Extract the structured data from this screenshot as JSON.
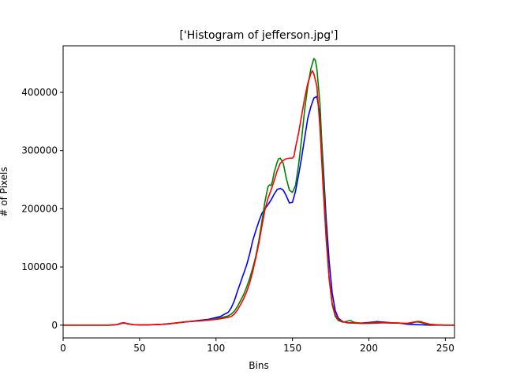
{
  "chart_data": {
    "type": "line",
    "title": "['Histogram of jefferson.jpg']",
    "xlabel": "Bins",
    "ylabel": "# of Pixels",
    "xlim": [
      0,
      256
    ],
    "ylim": [
      -22000,
      480000
    ],
    "xticks": [
      0,
      50,
      100,
      150,
      200,
      250
    ],
    "yticks": [
      0,
      100000,
      200000,
      300000,
      400000
    ],
    "grid": false,
    "series": [
      {
        "color": "#0000ff",
        "points": [
          [
            0,
            0
          ],
          [
            10,
            0
          ],
          [
            20,
            0
          ],
          [
            30,
            0
          ],
          [
            35,
            800
          ],
          [
            38,
            3500
          ],
          [
            40,
            4000
          ],
          [
            43,
            2000
          ],
          [
            46,
            800
          ],
          [
            50,
            500
          ],
          [
            55,
            500
          ],
          [
            60,
            1000
          ],
          [
            65,
            1500
          ],
          [
            70,
            2500
          ],
          [
            75,
            4000
          ],
          [
            80,
            5500
          ],
          [
            85,
            7000
          ],
          [
            90,
            8500
          ],
          [
            95,
            10000
          ],
          [
            100,
            13000
          ],
          [
            103,
            15000
          ],
          [
            105,
            18000
          ],
          [
            108,
            22000
          ],
          [
            110,
            30000
          ],
          [
            112,
            42000
          ],
          [
            114,
            58000
          ],
          [
            116,
            73000
          ],
          [
            118,
            88000
          ],
          [
            120,
            103000
          ],
          [
            122,
            122000
          ],
          [
            124,
            145000
          ],
          [
            126,
            162000
          ],
          [
            128,
            178000
          ],
          [
            130,
            192000
          ],
          [
            132,
            200000
          ],
          [
            134,
            207000
          ],
          [
            136,
            215000
          ],
          [
            138,
            225000
          ],
          [
            140,
            233000
          ],
          [
            142,
            235000
          ],
          [
            144,
            232000
          ],
          [
            146,
            222000
          ],
          [
            148,
            210000
          ],
          [
            150,
            211000
          ],
          [
            152,
            230000
          ],
          [
            154,
            258000
          ],
          [
            156,
            288000
          ],
          [
            158,
            322000
          ],
          [
            160,
            355000
          ],
          [
            162,
            375000
          ],
          [
            164,
            390000
          ],
          [
            166,
            393000
          ],
          [
            168,
            360000
          ],
          [
            170,
            280000
          ],
          [
            172,
            185000
          ],
          [
            174,
            110000
          ],
          [
            176,
            55000
          ],
          [
            178,
            25000
          ],
          [
            180,
            12000
          ],
          [
            183,
            6000
          ],
          [
            186,
            4000
          ],
          [
            190,
            4000
          ],
          [
            195,
            3500
          ],
          [
            200,
            4500
          ],
          [
            205,
            6000
          ],
          [
            210,
            5000
          ],
          [
            215,
            4000
          ],
          [
            220,
            3500
          ],
          [
            225,
            1500
          ],
          [
            230,
            1000
          ],
          [
            235,
            500
          ],
          [
            240,
            0
          ],
          [
            250,
            0
          ],
          [
            256,
            0
          ]
        ]
      },
      {
        "color": "#008000",
        "points": [
          [
            0,
            0
          ],
          [
            10,
            0
          ],
          [
            20,
            0
          ],
          [
            30,
            0
          ],
          [
            35,
            800
          ],
          [
            38,
            3000
          ],
          [
            40,
            3500
          ],
          [
            43,
            2000
          ],
          [
            46,
            800
          ],
          [
            50,
            400
          ],
          [
            55,
            400
          ],
          [
            60,
            800
          ],
          [
            65,
            1500
          ],
          [
            70,
            2500
          ],
          [
            75,
            4000
          ],
          [
            80,
            5500
          ],
          [
            85,
            6500
          ],
          [
            90,
            7500
          ],
          [
            95,
            9000
          ],
          [
            100,
            11000
          ],
          [
            103,
            12500
          ],
          [
            105,
            14000
          ],
          [
            108,
            16000
          ],
          [
            110,
            19000
          ],
          [
            112,
            24000
          ],
          [
            114,
            32000
          ],
          [
            116,
            42000
          ],
          [
            118,
            52000
          ],
          [
            120,
            65000
          ],
          [
            122,
            80000
          ],
          [
            124,
            98000
          ],
          [
            126,
            118000
          ],
          [
            128,
            145000
          ],
          [
            130,
            178000
          ],
          [
            132,
            212000
          ],
          [
            134,
            238000
          ],
          [
            135,
            241000
          ],
          [
            136,
            240000
          ],
          [
            137,
            248000
          ],
          [
            138,
            262000
          ],
          [
            140,
            280000
          ],
          [
            141,
            286000
          ],
          [
            142,
            287000
          ],
          [
            144,
            278000
          ],
          [
            146,
            252000
          ],
          [
            148,
            232000
          ],
          [
            150,
            228000
          ],
          [
            152,
            240000
          ],
          [
            154,
            275000
          ],
          [
            156,
            320000
          ],
          [
            158,
            370000
          ],
          [
            160,
            410000
          ],
          [
            162,
            440000
          ],
          [
            164,
            458000
          ],
          [
            165,
            455000
          ],
          [
            166,
            440000
          ],
          [
            168,
            380000
          ],
          [
            170,
            270000
          ],
          [
            172,
            160000
          ],
          [
            174,
            80000
          ],
          [
            176,
            35000
          ],
          [
            178,
            15000
          ],
          [
            180,
            8000
          ],
          [
            183,
            5000
          ],
          [
            186,
            7000
          ],
          [
            188,
            8000
          ],
          [
            190,
            5000
          ],
          [
            195,
            3000
          ],
          [
            200,
            3500
          ],
          [
            205,
            4500
          ],
          [
            210,
            4000
          ],
          [
            215,
            3500
          ],
          [
            220,
            3500
          ],
          [
            225,
            2500
          ],
          [
            228,
            3500
          ],
          [
            230,
            5000
          ],
          [
            232,
            5500
          ],
          [
            234,
            4500
          ],
          [
            238,
            1500
          ],
          [
            242,
            500
          ],
          [
            250,
            0
          ],
          [
            256,
            0
          ]
        ]
      },
      {
        "color": "#ff0000",
        "points": [
          [
            0,
            0
          ],
          [
            10,
            0
          ],
          [
            20,
            0
          ],
          [
            30,
            0
          ],
          [
            35,
            800
          ],
          [
            38,
            3000
          ],
          [
            40,
            3500
          ],
          [
            43,
            2000
          ],
          [
            46,
            800
          ],
          [
            50,
            400
          ],
          [
            55,
            400
          ],
          [
            60,
            800
          ],
          [
            65,
            1500
          ],
          [
            70,
            2500
          ],
          [
            75,
            4000
          ],
          [
            80,
            5500
          ],
          [
            85,
            6500
          ],
          [
            90,
            7500
          ],
          [
            95,
            8500
          ],
          [
            100,
            10000
          ],
          [
            103,
            11000
          ],
          [
            105,
            12000
          ],
          [
            108,
            13500
          ],
          [
            110,
            15000
          ],
          [
            112,
            19000
          ],
          [
            114,
            26000
          ],
          [
            116,
            35000
          ],
          [
            118,
            45000
          ],
          [
            120,
            57000
          ],
          [
            122,
            72000
          ],
          [
            124,
            92000
          ],
          [
            126,
            115000
          ],
          [
            128,
            140000
          ],
          [
            130,
            170000
          ],
          [
            132,
            198000
          ],
          [
            134,
            218000
          ],
          [
            136,
            232000
          ],
          [
            138,
            248000
          ],
          [
            140,
            265000
          ],
          [
            142,
            278000
          ],
          [
            144,
            283000
          ],
          [
            146,
            286000
          ],
          [
            148,
            287000
          ],
          [
            150,
            287000
          ],
          [
            151,
            290000
          ],
          [
            152,
            305000
          ],
          [
            154,
            330000
          ],
          [
            156,
            360000
          ],
          [
            158,
            390000
          ],
          [
            160,
            415000
          ],
          [
            162,
            432000
          ],
          [
            163,
            437000
          ],
          [
            164,
            432000
          ],
          [
            166,
            410000
          ],
          [
            168,
            340000
          ],
          [
            170,
            240000
          ],
          [
            172,
            150000
          ],
          [
            174,
            80000
          ],
          [
            176,
            38000
          ],
          [
            178,
            18000
          ],
          [
            180,
            10000
          ],
          [
            183,
            6000
          ],
          [
            186,
            4000
          ],
          [
            190,
            3500
          ],
          [
            195,
            3000
          ],
          [
            200,
            3000
          ],
          [
            205,
            3500
          ],
          [
            210,
            4000
          ],
          [
            215,
            4000
          ],
          [
            220,
            3500
          ],
          [
            225,
            3000
          ],
          [
            228,
            4500
          ],
          [
            230,
            5500
          ],
          [
            232,
            6500
          ],
          [
            234,
            6000
          ],
          [
            236,
            4000
          ],
          [
            240,
            1500
          ],
          [
            245,
            500
          ],
          [
            250,
            0
          ],
          [
            256,
            0
          ]
        ]
      }
    ]
  }
}
